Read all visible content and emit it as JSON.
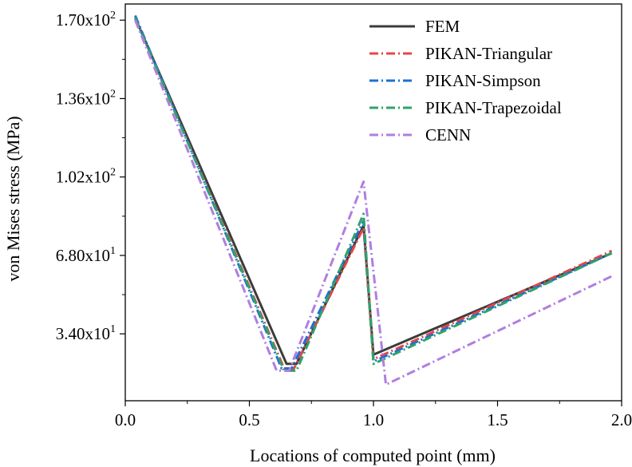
{
  "chart_data": {
    "type": "line",
    "xlabel": "Locations of computed point (mm)",
    "ylabel": "von Mises stress (MPa)",
    "xlim": [
      0.0,
      2.0
    ],
    "ylim": [
      5,
      177
    ],
    "x_ticks": [
      0.0,
      0.5,
      1.0,
      1.5,
      2.0
    ],
    "x_tick_labels": [
      "0.0",
      "0.5",
      "1.0",
      "1.5",
      "2.0"
    ],
    "y_ticks": [
      {
        "value": 34.0,
        "mantissa": "3.40x10",
        "exp": "1"
      },
      {
        "value": 68.0,
        "mantissa": "6.80x10",
        "exp": "1"
      },
      {
        "value": 102.0,
        "mantissa": "1.02x10",
        "exp": "2"
      },
      {
        "value": 136.0,
        "mantissa": "1.36x10",
        "exp": "2"
      },
      {
        "value": 170.0,
        "mantissa": "1.70x10",
        "exp": "2"
      }
    ],
    "legend_position": "top-right",
    "series": [
      {
        "name": "FEM",
        "color": "#3c3c3c",
        "dash": "solid",
        "x": [
          0.04,
          0.65,
          0.69,
          0.96,
          1.0,
          1.96
        ],
        "y": [
          171,
          21,
          21,
          81,
          25,
          69
        ]
      },
      {
        "name": "PIKAN-Triangular",
        "color": "#e84545",
        "dash": "dashdot",
        "x": [
          0.04,
          0.64,
          0.68,
          0.96,
          1.0,
          1.96
        ],
        "y": [
          171,
          19,
          19,
          80,
          23,
          70
        ]
      },
      {
        "name": "PIKAN-Simpson",
        "color": "#1f6fd4",
        "dash": "dashdot",
        "x": [
          0.04,
          0.63,
          0.67,
          0.96,
          1.0,
          1.96
        ],
        "y": [
          172,
          19,
          19,
          83,
          22,
          69
        ]
      },
      {
        "name": "PIKAN-Trapezoidal",
        "color": "#2ea36a",
        "dash": "dashdot",
        "x": [
          0.04,
          0.64,
          0.69,
          0.96,
          1.0,
          1.96
        ],
        "y": [
          171,
          18,
          18,
          86,
          21,
          69
        ]
      },
      {
        "name": "CENN",
        "color": "#b07ee0",
        "dash": "dashdot",
        "x": [
          0.04,
          0.61,
          0.66,
          0.96,
          1.05,
          1.96
        ],
        "y": [
          170,
          18,
          18,
          100,
          12,
          59
        ]
      }
    ]
  }
}
